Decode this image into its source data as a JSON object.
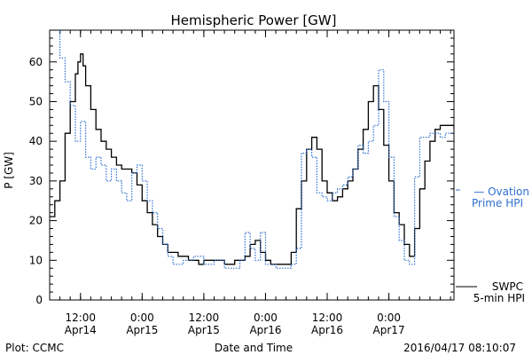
{
  "chart_data": {
    "type": "line",
    "title": "Hemispheric Power [GW]",
    "xlabel": "Date and Time",
    "ylabel": "P [GW]",
    "ylim": [
      0,
      68
    ],
    "xlim": [
      "2016-04-14T06:00",
      "2016-04-17T12:40"
    ],
    "yticks": [
      0,
      10,
      20,
      30,
      40,
      50,
      60
    ],
    "xticks": [
      {
        "time": "2016-04-14T12:00",
        "line1": "12:00",
        "line2": "Apr14"
      },
      {
        "time": "2016-04-15T00:00",
        "line1": "0:00",
        "line2": "Apr15"
      },
      {
        "time": "2016-04-15T12:00",
        "line1": "12:00",
        "line2": "Apr15"
      },
      {
        "time": "2016-04-16T00:00",
        "line1": "0:00",
        "line2": "Apr16"
      },
      {
        "time": "2016-04-16T12:00",
        "line1": "12:00",
        "line2": "Apr16"
      },
      {
        "time": "2016-04-17T00:00",
        "line1": "0:00",
        "line2": "Apr17"
      }
    ],
    "grid": false,
    "colors": {
      "swpc": "#000000",
      "ovation": "#2e6fd0"
    },
    "series": [
      {
        "key": "swpc",
        "style": "solid",
        "legend_line1": "SWPC",
        "legend_line2": "5-min HPI",
        "x": [
          "2016-04-14T06:00",
          "2016-04-14T07:00",
          "2016-04-14T08:00",
          "2016-04-14T09:00",
          "2016-04-14T10:00",
          "2016-04-14T11:00",
          "2016-04-14T11:30",
          "2016-04-14T12:00",
          "2016-04-14T12:30",
          "2016-04-14T13:00",
          "2016-04-14T14:00",
          "2016-04-14T15:00",
          "2016-04-14T16:00",
          "2016-04-14T17:00",
          "2016-04-14T18:00",
          "2016-04-14T19:00",
          "2016-04-14T20:00",
          "2016-04-14T21:00",
          "2016-04-14T22:00",
          "2016-04-14T23:00",
          "2016-04-15T00:00",
          "2016-04-15T01:00",
          "2016-04-15T02:00",
          "2016-04-15T03:00",
          "2016-04-15T04:00",
          "2016-04-15T05:00",
          "2016-04-15T06:00",
          "2016-04-15T07:00",
          "2016-04-15T08:00",
          "2016-04-15T09:00",
          "2016-04-15T10:00",
          "2016-04-15T11:00",
          "2016-04-15T12:00",
          "2016-04-15T13:00",
          "2016-04-15T14:00",
          "2016-04-15T16:00",
          "2016-04-15T18:00",
          "2016-04-15T20:00",
          "2016-04-15T21:00",
          "2016-04-15T22:00",
          "2016-04-15T23:00",
          "2016-04-16T00:00",
          "2016-04-16T01:00",
          "2016-04-16T02:00",
          "2016-04-16T03:00",
          "2016-04-16T04:00",
          "2016-04-16T05:00",
          "2016-04-16T06:00",
          "2016-04-16T07:00",
          "2016-04-16T08:00",
          "2016-04-16T09:00",
          "2016-04-16T10:00",
          "2016-04-16T11:00",
          "2016-04-16T12:00",
          "2016-04-16T13:00",
          "2016-04-16T14:00",
          "2016-04-16T15:00",
          "2016-04-16T16:00",
          "2016-04-16T17:00",
          "2016-04-16T18:00",
          "2016-04-16T19:00",
          "2016-04-16T20:00",
          "2016-04-16T21:00",
          "2016-04-16T22:00",
          "2016-04-16T23:00",
          "2016-04-17T00:00",
          "2016-04-17T01:00",
          "2016-04-17T02:00",
          "2016-04-17T03:00",
          "2016-04-17T04:00",
          "2016-04-17T05:00",
          "2016-04-17T06:00",
          "2016-04-17T07:00",
          "2016-04-17T08:00",
          "2016-04-17T09:00",
          "2016-04-17T10:00",
          "2016-04-17T11:00",
          "2016-04-17T12:00",
          "2016-04-17T12:40"
        ],
        "values": [
          21,
          25,
          30,
          42,
          50,
          57,
          60,
          62,
          59,
          54,
          48,
          43,
          40,
          38,
          36,
          34,
          33,
          33,
          32,
          29,
          25,
          22,
          19,
          16,
          14,
          12,
          12,
          11,
          11,
          10,
          10,
          9,
          10,
          10,
          10,
          9,
          10,
          11,
          14,
          15,
          12,
          10,
          9,
          9,
          9,
          9,
          12,
          23,
          30,
          38,
          41,
          38,
          30,
          27,
          25,
          26,
          28,
          30,
          33,
          38,
          43,
          50,
          54,
          48,
          39,
          30,
          22,
          19,
          14,
          11,
          18,
          28,
          35,
          40,
          43,
          44,
          44,
          44,
          43
        ]
      },
      {
        "key": "ovation",
        "style": "dotted",
        "legend_line1": "— Ovation",
        "legend_line2": "Prime HPI",
        "x": [
          "2016-04-14T06:00",
          "2016-04-14T07:00",
          "2016-04-14T08:00",
          "2016-04-14T09:00",
          "2016-04-14T10:00",
          "2016-04-14T11:00",
          "2016-04-14T12:00",
          "2016-04-14T13:00",
          "2016-04-14T14:00",
          "2016-04-14T15:00",
          "2016-04-14T16:00",
          "2016-04-14T17:00",
          "2016-04-14T18:00",
          "2016-04-14T19:00",
          "2016-04-14T20:00",
          "2016-04-14T21:00",
          "2016-04-14T22:00",
          "2016-04-14T23:00",
          "2016-04-15T00:00",
          "2016-04-15T01:00",
          "2016-04-15T02:00",
          "2016-04-15T03:00",
          "2016-04-15T04:00",
          "2016-04-15T05:00",
          "2016-04-15T06:00",
          "2016-04-15T08:00",
          "2016-04-15T10:00",
          "2016-04-15T12:00",
          "2016-04-15T14:00",
          "2016-04-15T16:00",
          "2016-04-15T18:00",
          "2016-04-15T19:00",
          "2016-04-15T20:00",
          "2016-04-15T21:00",
          "2016-04-15T22:00",
          "2016-04-15T23:00",
          "2016-04-16T00:00",
          "2016-04-16T02:00",
          "2016-04-16T04:00",
          "2016-04-16T05:00",
          "2016-04-16T06:00",
          "2016-04-16T07:00",
          "2016-04-16T08:00",
          "2016-04-16T09:00",
          "2016-04-16T10:00",
          "2016-04-16T11:00",
          "2016-04-16T12:00",
          "2016-04-16T13:00",
          "2016-04-16T14:00",
          "2016-04-16T15:00",
          "2016-04-16T16:00",
          "2016-04-16T17:00",
          "2016-04-16T18:00",
          "2016-04-16T19:00",
          "2016-04-16T20:00",
          "2016-04-16T21:00",
          "2016-04-16T22:00",
          "2016-04-16T23:00",
          "2016-04-17T00:00",
          "2016-04-17T01:00",
          "2016-04-17T02:00",
          "2016-04-17T03:00",
          "2016-04-17T04:00",
          "2016-04-17T05:00",
          "2016-04-17T06:00",
          "2016-04-17T07:00",
          "2016-04-17T08:00",
          "2016-04-17T09:00",
          "2016-04-17T10:00",
          "2016-04-17T11:00",
          "2016-04-17T12:00",
          "2016-04-17T12:40"
        ],
        "values": [
          68,
          68,
          61,
          55,
          49,
          40,
          45,
          36,
          33,
          36,
          34,
          30,
          33,
          30,
          27,
          25,
          32,
          34,
          30,
          25,
          22,
          18,
          14,
          11,
          9,
          10,
          11,
          9,
          10,
          8,
          8,
          10,
          17,
          13,
          10,
          17,
          9,
          8,
          8,
          9,
          13,
          37,
          38,
          36,
          27,
          26,
          25,
          27,
          28,
          29,
          31,
          33,
          39,
          37,
          40,
          44,
          58,
          50,
          36,
          21,
          15,
          10,
          9,
          31,
          41,
          41,
          42,
          42,
          41,
          42,
          42,
          42
        ]
      }
    ]
  },
  "footer": {
    "left": "Plot: CCMC",
    "timestamp": "2016/04/17 08:10:07"
  }
}
